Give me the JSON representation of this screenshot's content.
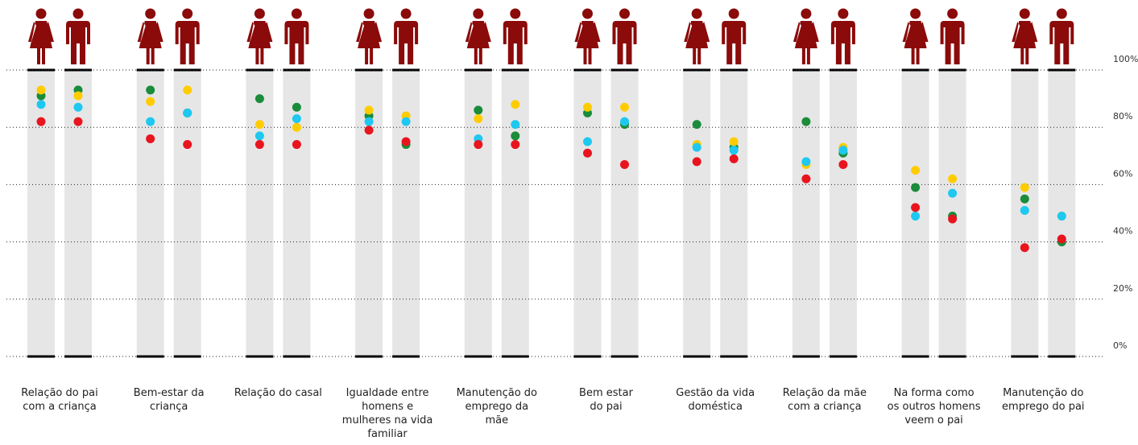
{
  "chart_data": {
    "type": "dot",
    "categories": [
      "Relação do pai\ncom a criança",
      "Bem-estar da\ncriança",
      "Relação do casal",
      "Igualdade entre\nhomens e\nmulheres na vida\nfamiliar",
      "Manutenção do\nemprego da\nmãe",
      "Bem estar\ndo pai",
      "Gestão da vida\ndoméstica",
      "Relação da mãe\ncom a criança",
      "Na forma como\nos outros homens\nveem o pai",
      "Manutenção do\nemprego do pai"
    ],
    "ylim": [
      0,
      100
    ],
    "yticks": [
      {
        "value": 0,
        "label": "0%"
      },
      {
        "value": 20,
        "label": "20%"
      },
      {
        "value": 40,
        "label": "40%"
      },
      {
        "value": 60,
        "label": "60%"
      },
      {
        "value": 80,
        "label": "80%"
      },
      {
        "value": 100,
        "label": "100%"
      }
    ],
    "grid": true,
    "series": [
      {
        "icon": "female",
        "color": "#1a8c3a",
        "values": [
          91,
          93,
          90,
          84,
          86,
          85,
          81,
          82,
          59,
          55
        ]
      },
      {
        "icon": "female",
        "color": "#ffcc00",
        "values": [
          93,
          89,
          81,
          86,
          83,
          87,
          74,
          67,
          65,
          59
        ]
      },
      {
        "icon": "female",
        "color": "#1ec8f0",
        "values": [
          88,
          82,
          77,
          82,
          76,
          75,
          73,
          68,
          49,
          51
        ]
      },
      {
        "icon": "female",
        "color": "#e8141e",
        "values": [
          82,
          76,
          74,
          79,
          74,
          71,
          68,
          62,
          52,
          38
        ]
      },
      {
        "icon": "male",
        "color": "#1a8c3a",
        "values": [
          93,
          85,
          87,
          74,
          77,
          81,
          73,
          71,
          49,
          40
        ]
      },
      {
        "icon": "male",
        "color": "#ffcc00",
        "values": [
          91,
          93,
          80,
          84,
          88,
          87,
          75,
          73,
          62,
          49
        ]
      },
      {
        "icon": "male",
        "color": "#1ec8f0",
        "values": [
          87,
          85,
          83,
          82,
          81,
          82,
          72,
          72,
          57,
          49
        ]
      },
      {
        "icon": "male",
        "color": "#e8141e",
        "values": [
          82,
          74,
          74,
          75,
          74,
          67,
          69,
          67,
          48,
          41
        ]
      }
    ]
  }
}
